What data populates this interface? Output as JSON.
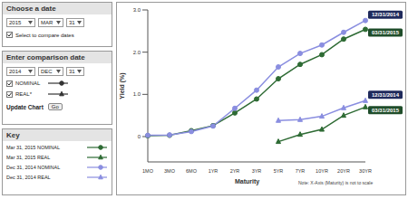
{
  "controls": {
    "choose_date": {
      "title": "Choose a date",
      "year": "2015",
      "month": "MAR",
      "day": "31",
      "compare_label": "Select to compare dates"
    },
    "comparison_date": {
      "title": "Enter comparison date",
      "year": "2014",
      "month": "DEC",
      "day": "31",
      "options": [
        {
          "label": "NOMINAL",
          "marker": "circle"
        },
        {
          "label": "REAL*",
          "marker": "triangle"
        }
      ]
    },
    "update": {
      "label": "Update Chart",
      "button": "Go"
    },
    "key_title": "Key"
  },
  "chart_data": {
    "type": "line",
    "x_label": "Maturity",
    "y_label": "Yield (%)",
    "note": "Note: X-Axis (Maturity) is not to scale",
    "categories": [
      "1MO",
      "3MO",
      "6MO",
      "1YR",
      "2YR",
      "3YR",
      "5YR",
      "7YR",
      "10YR",
      "20YR",
      "30YR"
    ],
    "series": [
      {
        "name": "Mar 31, 2015 NOMINAL",
        "color": "#2e6b34",
        "marker": "circle",
        "values": [
          0.02,
          0.03,
          0.14,
          0.26,
          0.56,
          0.89,
          1.37,
          1.71,
          1.94,
          2.31,
          2.54
        ]
      },
      {
        "name": "Mar 31, 2015 REAL",
        "color": "#2e6b34",
        "marker": "triangle",
        "values": [
          null,
          null,
          null,
          null,
          null,
          null,
          -0.12,
          0.05,
          0.17,
          0.5,
          0.7
        ]
      },
      {
        "name": "Dec 31, 2014 NOMINAL",
        "color": "#8a8ee0",
        "marker": "circle",
        "values": [
          0.03,
          0.04,
          0.12,
          0.25,
          0.67,
          1.1,
          1.65,
          1.97,
          2.17,
          2.47,
          2.75
        ]
      },
      {
        "name": "Dec 31, 2014 REAL",
        "color": "#8a8ee0",
        "marker": "triangle",
        "values": [
          null,
          null,
          null,
          null,
          null,
          null,
          0.38,
          0.4,
          0.48,
          0.68,
          0.85
        ]
      }
    ],
    "annotations": [
      {
        "text": "12/31/2014",
        "series": "Dec 31, 2014 NOMINAL",
        "color": "#1f2a5c"
      },
      {
        "text": "03/31/2015",
        "series": "Mar 31, 2015 NOMINAL",
        "color": "#1f4d2a"
      },
      {
        "text": "12/31/2014",
        "series": "Dec 31, 2014 REAL",
        "color": "#1f2a5c"
      },
      {
        "text": "03/31/2015",
        "series": "Mar 31, 2015 REAL",
        "color": "#1f4d2a"
      }
    ],
    "ylim": [
      -0.6,
      3.0
    ],
    "yticks": [
      0,
      {
        "value": 1,
        "label": "1.0"
      },
      {
        "value": 2,
        "label": "2.0"
      },
      {
        "value": 3,
        "label": "3.0"
      }
    ],
    "grid": false,
    "legend": "none"
  }
}
